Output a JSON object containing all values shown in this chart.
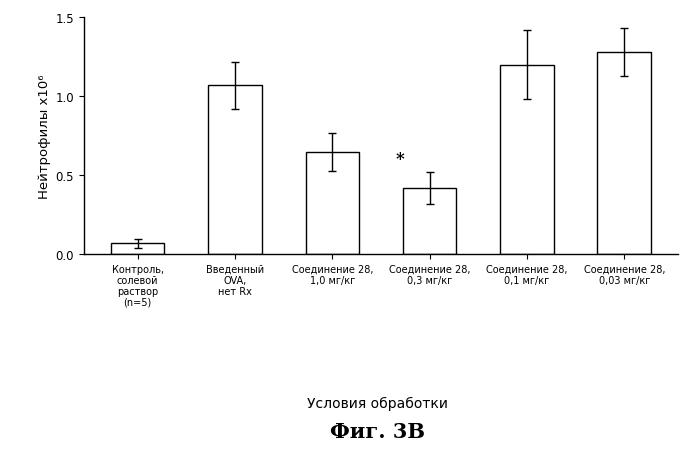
{
  "categories": [
    "Контроль,\nсолевой\nраствор\n(n=5)",
    "Введенный\nOVA,\nнет Rx",
    "Соединение 28,\n1,0 мг/кг",
    "Соединение 28,\n0,3 мг/кг",
    "Соединение 28,\n0,1 мг/кг",
    "Соединение 28,\n0,03 мг/кг"
  ],
  "values": [
    0.07,
    1.07,
    0.65,
    0.42,
    1.2,
    1.28
  ],
  "errors": [
    0.03,
    0.15,
    0.12,
    0.1,
    0.22,
    0.15
  ],
  "bar_color": "#ffffff",
  "bar_edgecolor": "#000000",
  "star_bar_index": 3,
  "ylabel": "Нейтрофилы х10⁶",
  "xlabel": "Условия обработки",
  "title": "Фиг. 3В",
  "ylim": [
    0,
    1.5
  ],
  "yticks": [
    0.0,
    0.5,
    1.0,
    1.5
  ],
  "bar_width": 0.55,
  "figsize": [
    6.99,
    4.56
  ],
  "dpi": 100
}
